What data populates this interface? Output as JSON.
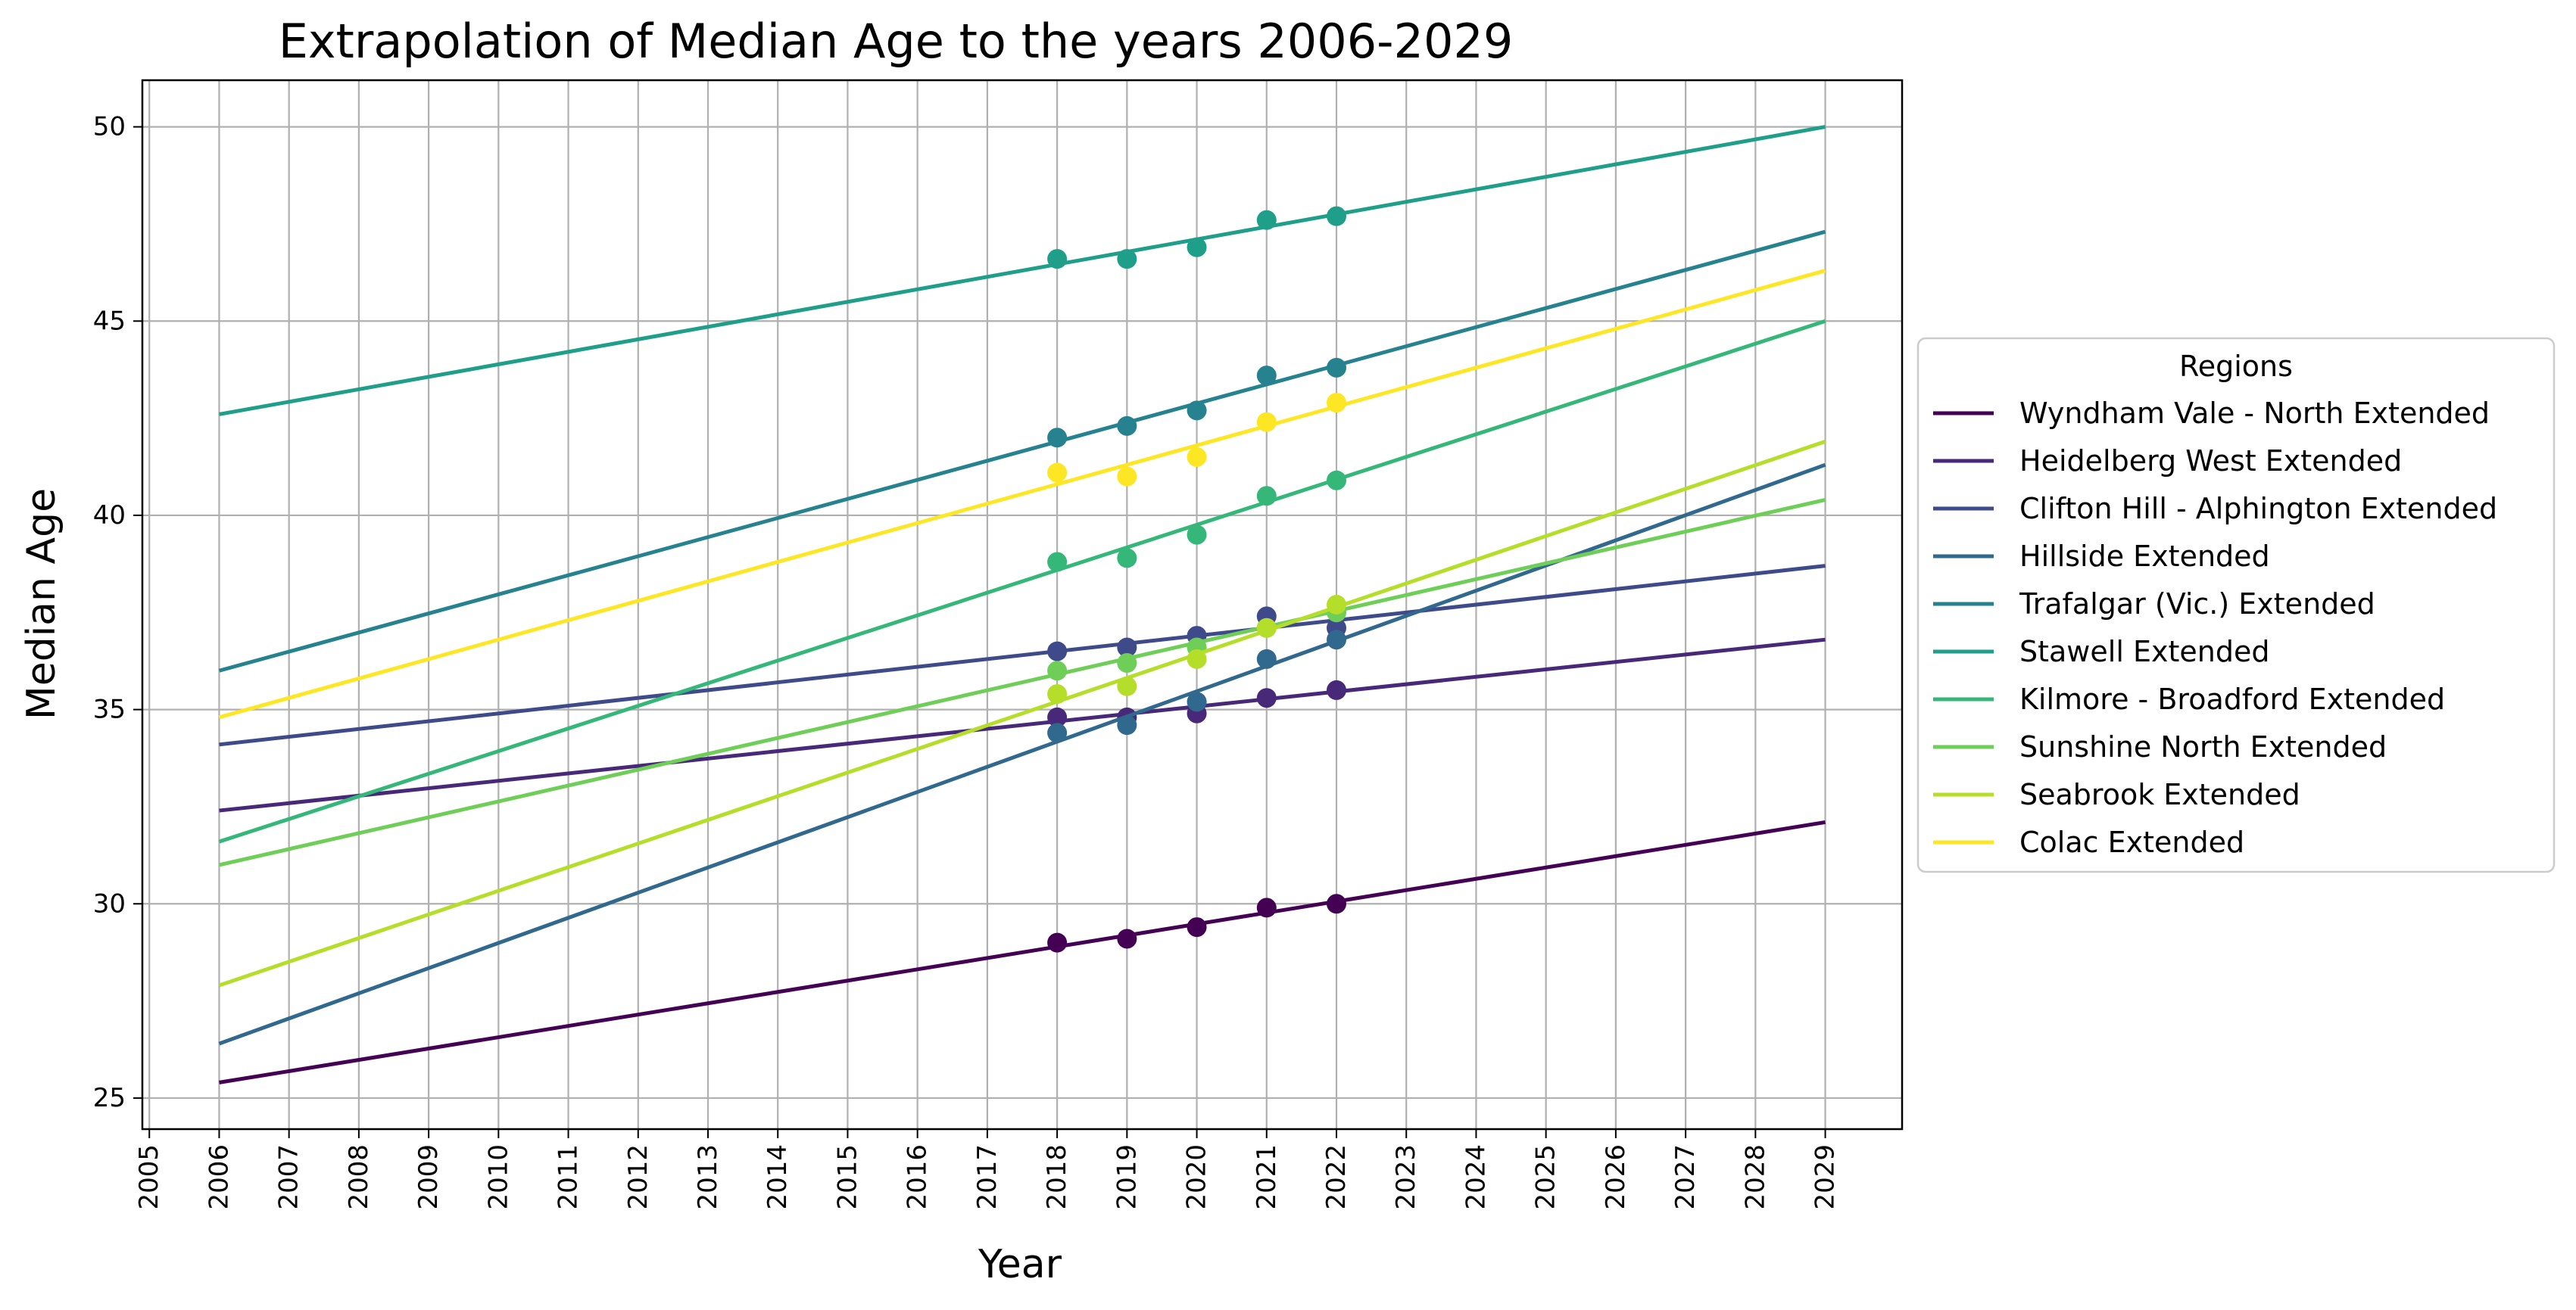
{
  "chart_data": {
    "type": "line",
    "title": "Extrapolation of Median Age to the years 2006-2029",
    "xlabel": "Year",
    "ylabel": "Median Age",
    "xlim": [
      2004.9,
      2030.1
    ],
    "ylim": [
      24.2,
      51.2
    ],
    "x_ticks": [
      2005,
      2006,
      2007,
      2008,
      2009,
      2010,
      2011,
      2012,
      2013,
      2014,
      2015,
      2016,
      2017,
      2018,
      2019,
      2020,
      2021,
      2022,
      2023,
      2024,
      2025,
      2026,
      2027,
      2028,
      2029
    ],
    "y_ticks": [
      25,
      30,
      35,
      40,
      45,
      50
    ],
    "grid": true,
    "legend": {
      "title": "Regions",
      "placement": "outside right"
    },
    "series": [
      {
        "name": "Wyndham Vale - North Extended",
        "color": "#440154",
        "line": [
          [
            2006,
            25.4
          ],
          [
            2029,
            32.1
          ]
        ],
        "points": {
          "x": [
            2018,
            2019,
            2020,
            2021,
            2022
          ],
          "y": [
            29.0,
            29.1,
            29.4,
            29.9,
            30.0
          ]
        }
      },
      {
        "name": "Heidelberg West Extended",
        "color": "#482878",
        "line": [
          [
            2006,
            32.4
          ],
          [
            2029,
            36.8
          ]
        ],
        "points": {
          "x": [
            2018,
            2019,
            2020,
            2021,
            2022
          ],
          "y": [
            34.8,
            34.8,
            34.9,
            35.3,
            35.5
          ]
        }
      },
      {
        "name": "Clifton Hill - Alphington Extended",
        "color": "#3e4a89",
        "line": [
          [
            2006,
            34.1
          ],
          [
            2029,
            38.7
          ]
        ],
        "points": {
          "x": [
            2018,
            2019,
            2020,
            2021,
            2022
          ],
          "y": [
            36.5,
            36.6,
            36.9,
            37.4,
            37.1
          ]
        }
      },
      {
        "name": "Hillside Extended",
        "color": "#31688e",
        "line": [
          [
            2006,
            26.4
          ],
          [
            2029,
            41.3
          ]
        ],
        "points": {
          "x": [
            2018,
            2019,
            2020,
            2021,
            2022
          ],
          "y": [
            34.4,
            34.6,
            35.2,
            36.3,
            36.8
          ]
        }
      },
      {
        "name": "Trafalgar (Vic.) Extended",
        "color": "#26828e",
        "line": [
          [
            2006,
            36.0
          ],
          [
            2029,
            47.3
          ]
        ],
        "points": {
          "x": [
            2018,
            2019,
            2020,
            2021,
            2022
          ],
          "y": [
            42.0,
            42.3,
            42.7,
            43.6,
            43.8
          ]
        }
      },
      {
        "name": "Stawell Extended",
        "color": "#1f9e89",
        "line": [
          [
            2006,
            42.6
          ],
          [
            2029,
            50.0
          ]
        ],
        "points": {
          "x": [
            2018,
            2019,
            2020,
            2021,
            2022
          ],
          "y": [
            46.6,
            46.6,
            46.9,
            47.6,
            47.7
          ]
        }
      },
      {
        "name": "Kilmore - Broadford Extended",
        "color": "#35b779",
        "line": [
          [
            2006,
            31.6
          ],
          [
            2029,
            45.0
          ]
        ],
        "points": {
          "x": [
            2018,
            2019,
            2020,
            2021,
            2022
          ],
          "y": [
            38.8,
            38.9,
            39.5,
            40.5,
            40.9
          ]
        }
      },
      {
        "name": "Sunshine North Extended",
        "color": "#6ece58",
        "line": [
          [
            2006,
            31.0
          ],
          [
            2029,
            40.4
          ]
        ],
        "points": {
          "x": [
            2018,
            2019,
            2020,
            2021,
            2022
          ],
          "y": [
            36.0,
            36.2,
            36.6,
            37.1,
            37.5
          ]
        }
      },
      {
        "name": "Seabrook Extended",
        "color": "#b5de2b",
        "line": [
          [
            2006,
            27.9
          ],
          [
            2029,
            41.9
          ]
        ],
        "points": {
          "x": [
            2018,
            2019,
            2020,
            2021,
            2022
          ],
          "y": [
            35.4,
            35.6,
            36.3,
            37.1,
            37.7
          ]
        }
      },
      {
        "name": "Colac Extended",
        "color": "#fde725",
        "line": [
          [
            2006,
            34.8
          ],
          [
            2029,
            46.3
          ]
        ],
        "points": {
          "x": [
            2018,
            2019,
            2020,
            2021,
            2022
          ],
          "y": [
            41.1,
            41.0,
            41.5,
            42.4,
            42.9
          ]
        }
      }
    ]
  }
}
